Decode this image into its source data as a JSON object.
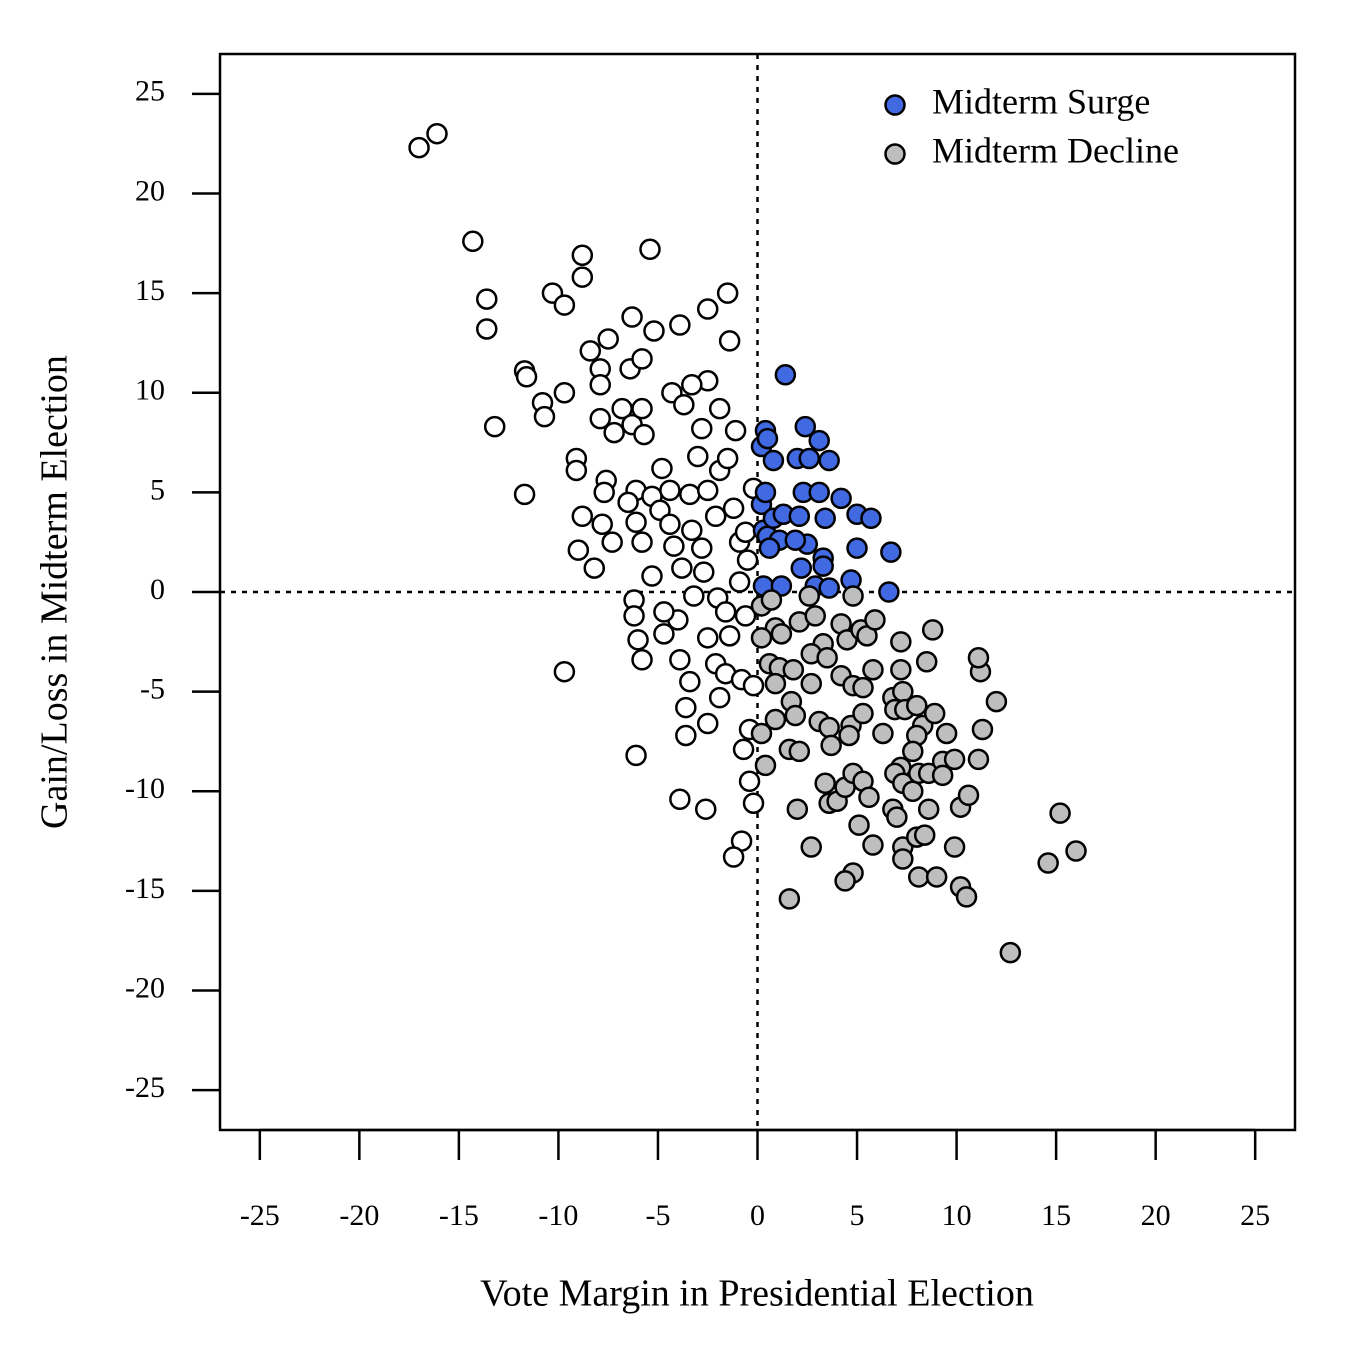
{
  "chart_data": {
    "type": "scatter",
    "x_label": "Vote Margin in Presidential Election",
    "y_label": "Gain/Loss in Midterm Election",
    "xlim": [
      -27,
      27
    ],
    "ylim": [
      -27,
      27
    ],
    "xticks": [
      -25,
      -20,
      -15,
      -10,
      -5,
      0,
      5,
      10,
      15,
      20,
      25
    ],
    "yticks": [
      -25,
      -20,
      -15,
      -10,
      -5,
      0,
      5,
      10,
      15,
      20,
      25
    ],
    "vline": 0,
    "hline": 0,
    "legend": "top-right",
    "series": [
      {
        "color": "#ffffff",
        "x": [
          -17,
          -16.1,
          -14.3,
          -13.6,
          -13.6,
          -13.2,
          -11.7,
          -11.6,
          -10.8,
          -10.7,
          -10.3,
          -9.7,
          -9.7,
          -9.1,
          -9.1,
          -8.8,
          -8.8,
          -8.4,
          -7.9,
          -7.9,
          -7.9,
          -7.5,
          -11.7,
          -9.7,
          -9,
          -8.8,
          -7.8,
          -7.6,
          -7.3,
          -8.2,
          -7.7,
          -7.2,
          -6.8,
          -6.3,
          -6.3,
          -6.4,
          -5.8,
          -5.4,
          -5.2,
          -3.9,
          -2.5,
          -1.5,
          -1.4,
          -2.5,
          -3.3,
          -1.9,
          -1.1,
          -4.3,
          -5.8,
          -3.7,
          -6.1,
          -6.5,
          -6.1,
          -5.8,
          -5.3,
          -4.9,
          -4.4,
          -4.4,
          -4.2,
          -3.8,
          -3.4,
          -3.3,
          -2.8,
          -2.5,
          -2.1,
          -1.9,
          -1.5,
          -1.2,
          -0.9,
          -0.5,
          -0.2,
          -2.7,
          -2,
          -1.6,
          -0.9,
          -3.2,
          -4,
          -4.7,
          -4.7,
          -5.8,
          -6,
          -6.2,
          -3.9,
          -3.4,
          -2.5,
          -2.1,
          -1.6,
          -0.8,
          -0.2,
          -1.9,
          -2.5,
          -3.6,
          -3.6,
          -6.1,
          -3.9,
          -2.6,
          -0.7,
          -0.4,
          -0.2,
          -0.8,
          -1.2,
          -0.4,
          -4.8,
          -5.7,
          -3,
          -2.8,
          -0.6,
          -1.4,
          -0.6,
          -5.3,
          -6.2
        ],
        "values": [
          22.3,
          23,
          17.6,
          14.7,
          13.2,
          8.3,
          11.1,
          10.8,
          9.5,
          8.8,
          15,
          14.4,
          10,
          6.7,
          6.1,
          16.9,
          15.8,
          12.1,
          11.2,
          8.7,
          10.4,
          12.7,
          4.9,
          -4,
          2.1,
          3.8,
          3.4,
          5.6,
          2.5,
          1.2,
          5,
          8,
          9.2,
          13.8,
          8.4,
          11.2,
          11.7,
          17.2,
          13.1,
          13.4,
          14.2,
          15,
          12.6,
          10.6,
          10.4,
          9.2,
          8.1,
          10,
          9.2,
          9.4,
          5.1,
          4.5,
          3.5,
          2.5,
          4.8,
          4.1,
          5.1,
          3.4,
          2.3,
          1.2,
          4.9,
          3.1,
          2.2,
          5.1,
          3.8,
          6.1,
          6.7,
          4.2,
          2.5,
          1.6,
          5.2,
          1,
          -0.3,
          -1,
          0.5,
          -0.2,
          -1.4,
          -1,
          -2.1,
          -3.4,
          -2.4,
          -0.4,
          -3.4,
          -4.5,
          -2.3,
          -3.6,
          -4.1,
          -4.4,
          -4.7,
          -5.3,
          -6.6,
          -5.8,
          -7.2,
          -8.2,
          -10.4,
          -10.9,
          -7.9,
          -9.5,
          -10.6,
          -12.5,
          -13.3,
          -6.9,
          6.2,
          7.9,
          6.8,
          8.2,
          3,
          -2.2,
          -1.2,
          0.8,
          -1.2
        ]
      },
      {
        "name": "Midterm Surge",
        "color": "#4169e1",
        "x": [
          0.2,
          0.4,
          0.5,
          0.8,
          0.2,
          0.4,
          0.3,
          0.5,
          0.8,
          1.1,
          1.3,
          0.6,
          1.4,
          2,
          2.4,
          3.1,
          2.6,
          3.6,
          2.3,
          3.1,
          4.2,
          5,
          5.7,
          3.4,
          2.1,
          2.5,
          5,
          6.7,
          3.3,
          3.3,
          2.2,
          0.3,
          1.2,
          2.9,
          3.6,
          4.7,
          6.6,
          1.9
        ],
        "values": [
          7.3,
          8.1,
          7.7,
          6.6,
          4.4,
          5,
          3.1,
          2.8,
          3.7,
          2.6,
          3.9,
          2.2,
          10.9,
          6.7,
          8.3,
          7.6,
          6.7,
          6.6,
          5,
          5,
          4.7,
          3.9,
          3.7,
          3.7,
          3.8,
          2.4,
          2.2,
          2,
          1.7,
          1.3,
          1.2,
          0.3,
          0.3,
          0.3,
          0.2,
          0.6,
          0,
          2.6
        ]
      },
      {
        "name": "Midterm Decline",
        "color": "#bebebe",
        "x": [
          0.2,
          0.7,
          0.9,
          1.2,
          0.2,
          0.6,
          1.1,
          0.9,
          1.8,
          1.7,
          1.9,
          0.9,
          0.2,
          0.4,
          1.6,
          2.1,
          2,
          1.6,
          2.7,
          2.1,
          2.6,
          2.9,
          3.3,
          2.7,
          3.5,
          2.7,
          3.1,
          3.6,
          3.7,
          3.4,
          3.6,
          4,
          4.4,
          4.8,
          5.3,
          5.1,
          5.8,
          5.6,
          4.8,
          4.4,
          4.2,
          4.5,
          4.2,
          4.8,
          5.3,
          4.7,
          5.3,
          4.6,
          5.2,
          4.8,
          5.5,
          5.9,
          5.8,
          6.3,
          6.8,
          6.9,
          7.2,
          7.2,
          7.3,
          7.4,
          8,
          8.5,
          8.8,
          8.3,
          8,
          8.9,
          7.8,
          7.2,
          6.9,
          7.3,
          6.8,
          7,
          7.8,
          8.1,
          8.6,
          8.6,
          9.3,
          9.5,
          9.9,
          10.2,
          10.6,
          11.1,
          11.3,
          12,
          11.2,
          11.1,
          7.3,
          7.3,
          8.1,
          8,
          9,
          9.9,
          10.2,
          10.5,
          12.7,
          14.6,
          15.2,
          16,
          8.4,
          9.3
        ],
        "values": [
          -0.7,
          -0.4,
          -1.8,
          -2.1,
          -2.3,
          -3.6,
          -3.8,
          -4.6,
          -3.9,
          -5.5,
          -6.2,
          -6.4,
          -7.1,
          -8.7,
          -7.9,
          -8,
          -10.9,
          -15.4,
          -12.8,
          -1.5,
          -0.2,
          -1.2,
          -2.6,
          -3.1,
          -3.3,
          -4.6,
          -6.5,
          -6.8,
          -7.7,
          -9.6,
          -10.6,
          -10.5,
          -9.8,
          -9.1,
          -9.5,
          -11.7,
          -12.7,
          -10.3,
          -14.1,
          -14.5,
          -1.6,
          -2.4,
          -4.2,
          -4.7,
          -4.8,
          -6.7,
          -6.1,
          -7.2,
          -1.9,
          -0.2,
          -2.2,
          -1.4,
          -3.9,
          -7.1,
          -5.3,
          -5.9,
          -2.5,
          -3.9,
          -5,
          -5.9,
          -5.7,
          -3.5,
          -1.9,
          -6.7,
          -7.2,
          -6.1,
          -8,
          -8.8,
          -9.1,
          -9.6,
          -10.9,
          -11.3,
          -10,
          -9.1,
          -9.1,
          -10.9,
          -8.5,
          -7.1,
          -8.4,
          -10.8,
          -10.2,
          -8.4,
          -6.9,
          -5.5,
          -4,
          -3.3,
          -12.8,
          -13.4,
          -14.3,
          -12.3,
          -14.3,
          -12.8,
          -14.8,
          -15.3,
          -18.1,
          -13.6,
          -11.1,
          -13,
          -12.2,
          -9.2
        ]
      }
    ]
  }
}
